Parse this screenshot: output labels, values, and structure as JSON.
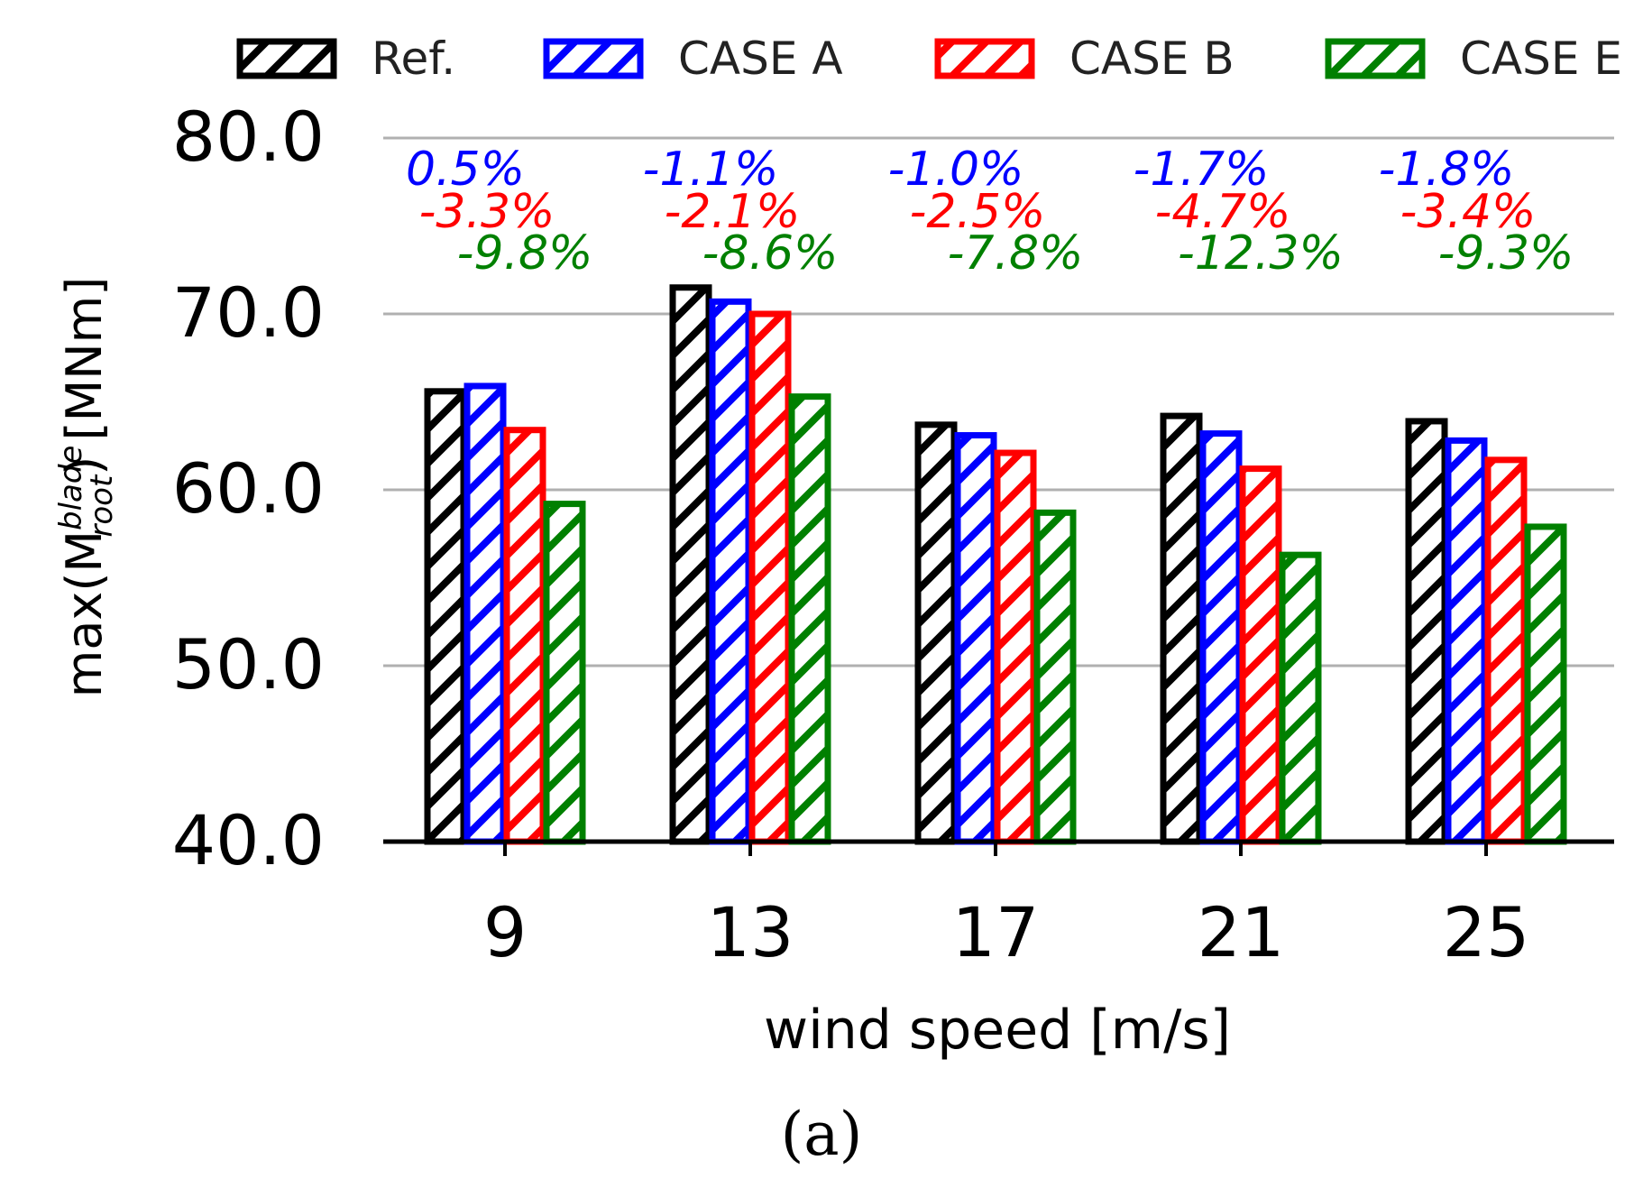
{
  "chart_data": {
    "type": "bar",
    "title": "",
    "xlabel": "wind speed [m/s]",
    "ylabel": {
      "prefix": "max(M",
      "superscript": "blade",
      "subscript": "root",
      "suffix": ") [MNm]"
    },
    "ylim": [
      40,
      80
    ],
    "yticks": [
      "40.0",
      "50.0",
      "60.0",
      "70.0",
      "80.0"
    ],
    "categories": [
      "9",
      "13",
      "17",
      "21",
      "25"
    ],
    "grid": true,
    "legend_position": "top",
    "series": [
      {
        "name": "Ref.",
        "color": "#000000",
        "values": [
          65.6,
          71.5,
          63.7,
          64.2,
          63.9
        ],
        "annotations": [
          "",
          "",
          "",
          "",
          ""
        ]
      },
      {
        "name": "CASE A",
        "color": "#0000ff",
        "values": [
          65.9,
          70.7,
          63.1,
          63.2,
          62.8
        ],
        "annotations": [
          "0.5%",
          "-1.1%",
          "-1.0%",
          "-1.7%",
          "-1.8%"
        ]
      },
      {
        "name": "CASE B",
        "color": "#ff0000",
        "values": [
          63.4,
          70.0,
          62.1,
          61.2,
          61.7
        ],
        "annotations": [
          "-3.3%",
          "-2.1%",
          "-2.5%",
          "-4.7%",
          "-3.4%"
        ]
      },
      {
        "name": "CASE E",
        "color": "#008000",
        "values": [
          59.2,
          65.3,
          58.7,
          56.3,
          57.9
        ],
        "annotations": [
          "-9.8%",
          "-8.6%",
          "-7.8%",
          "-12.3%",
          "-9.3%"
        ]
      }
    ],
    "panel_label": "(a)"
  }
}
